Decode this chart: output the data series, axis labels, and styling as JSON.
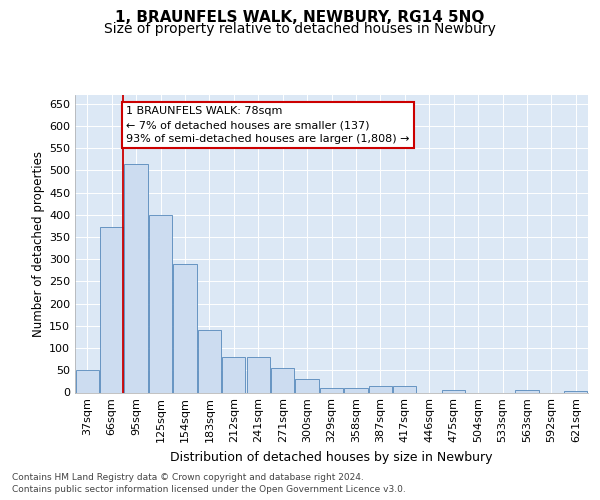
{
  "title": "1, BRAUNFELS WALK, NEWBURY, RG14 5NQ",
  "subtitle": "Size of property relative to detached houses in Newbury",
  "xlabel": "Distribution of detached houses by size in Newbury",
  "ylabel": "Number of detached properties",
  "footer_line1": "Contains HM Land Registry data © Crown copyright and database right 2024.",
  "footer_line2": "Contains public sector information licensed under the Open Government Licence v3.0.",
  "categories": [
    "37sqm",
    "66sqm",
    "95sqm",
    "125sqm",
    "154sqm",
    "183sqm",
    "212sqm",
    "241sqm",
    "271sqm",
    "300sqm",
    "329sqm",
    "358sqm",
    "387sqm",
    "417sqm",
    "446sqm",
    "475sqm",
    "504sqm",
    "533sqm",
    "563sqm",
    "592sqm",
    "621sqm"
  ],
  "values": [
    50,
    373,
    515,
    400,
    290,
    140,
    80,
    80,
    55,
    30,
    10,
    10,
    15,
    15,
    0,
    5,
    0,
    0,
    5,
    0,
    3
  ],
  "bar_color": "#ccdcf0",
  "bar_edge_color": "#5588bb",
  "red_line_color": "#cc0000",
  "red_line_x": 1.48,
  "annotation_line1": "1 BRAUNFELS WALK: 78sqm",
  "annotation_line2": "← 7% of detached houses are smaller (137)",
  "annotation_line3": "93% of semi-detached houses are larger (1,808) →",
  "annotation_box_facecolor": "#ffffff",
  "annotation_box_edgecolor": "#cc0000",
  "ylim": [
    0,
    670
  ],
  "yticks": [
    0,
    50,
    100,
    150,
    200,
    250,
    300,
    350,
    400,
    450,
    500,
    550,
    600,
    650
  ],
  "plot_bg_color": "#dce8f5",
  "title_fontsize": 11,
  "subtitle_fontsize": 10,
  "xlabel_fontsize": 9,
  "ylabel_fontsize": 8.5,
  "tick_fontsize": 8,
  "ann_fontsize": 8,
  "footer_fontsize": 6.5
}
